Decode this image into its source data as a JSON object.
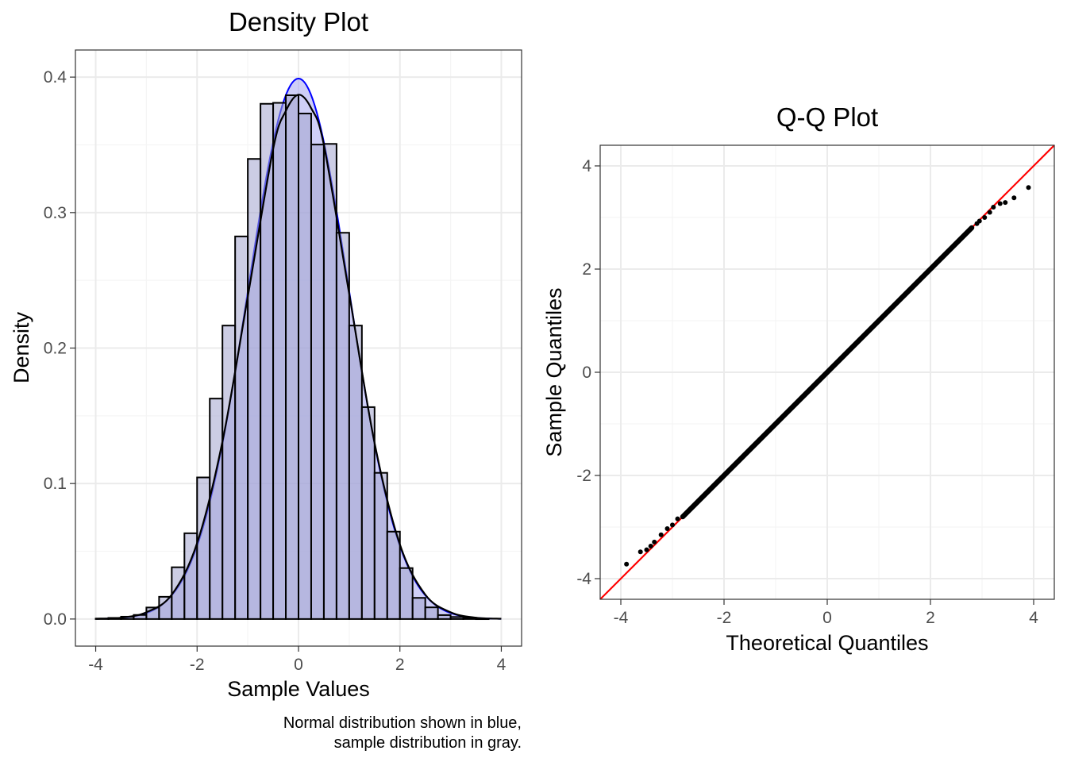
{
  "colors": {
    "panel_border": "#333333",
    "grid_major": "#ebebeb",
    "grid_minor": "#f5f5f5",
    "text": "#000000",
    "tick_text": "#4d4d4d",
    "hist_fill": "#a3a4cd",
    "hist_outline": "#000000",
    "normal_curve": "#0000ff",
    "normal_fill": "#a8a8f0",
    "sample_curve": "#000000",
    "qq_points": "#000000",
    "qq_line": "#ff0000"
  },
  "chart_data": [
    {
      "type": "bar",
      "title": "Density Plot",
      "xlabel": "Sample Values",
      "ylabel": "Density",
      "caption_lines": [
        "Normal distribution shown in blue,",
        "sample distribution in gray."
      ],
      "xlim": [
        -4.4,
        4.4
      ],
      "ylim": [
        -0.02,
        0.42
      ],
      "x_ticks": [
        -4,
        -2,
        0,
        2,
        4
      ],
      "x_tick_labels": [
        "-4",
        "-2",
        "0",
        "2",
        "4"
      ],
      "y_ticks": [
        0.0,
        0.1,
        0.2,
        0.3,
        0.4
      ],
      "y_tick_labels": [
        "0.0",
        "0.1",
        "0.2",
        "0.3",
        "0.4"
      ],
      "x_minor": [
        -3,
        -1,
        1,
        3
      ],
      "y_minor": [
        0.05,
        0.15,
        0.25,
        0.35
      ],
      "grid": true,
      "bins": [
        {
          "x0": -4.0,
          "x1": -3.75,
          "density": 0.0003
        },
        {
          "x0": -3.75,
          "x1": -3.5,
          "density": 0.0008
        },
        {
          "x0": -3.5,
          "x1": -3.25,
          "density": 0.0017
        },
        {
          "x0": -3.25,
          "x1": -3.0,
          "density": 0.003
        },
        {
          "x0": -3.0,
          "x1": -2.75,
          "density": 0.0085
        },
        {
          "x0": -2.75,
          "x1": -2.5,
          "density": 0.0164
        },
        {
          "x0": -2.5,
          "x1": -2.25,
          "density": 0.0382
        },
        {
          "x0": -2.25,
          "x1": -2.0,
          "density": 0.0633
        },
        {
          "x0": -2.0,
          "x1": -1.75,
          "density": 0.1045
        },
        {
          "x0": -1.75,
          "x1": -1.5,
          "density": 0.1627
        },
        {
          "x0": -1.5,
          "x1": -1.25,
          "density": 0.2166
        },
        {
          "x0": -1.25,
          "x1": -1.0,
          "density": 0.2824
        },
        {
          "x0": -1.0,
          "x1": -0.75,
          "density": 0.3396
        },
        {
          "x0": -0.75,
          "x1": -0.5,
          "density": 0.3803
        },
        {
          "x0": -0.5,
          "x1": -0.25,
          "density": 0.381
        },
        {
          "x0": -0.25,
          "x1": 0.0,
          "density": 0.3866
        },
        {
          "x0": 0.0,
          "x1": 0.25,
          "density": 0.3731
        },
        {
          "x0": 0.25,
          "x1": 0.5,
          "density": 0.3502
        },
        {
          "x0": 0.5,
          "x1": 0.75,
          "density": 0.3507
        },
        {
          "x0": 0.75,
          "x1": 1.0,
          "density": 0.2851
        },
        {
          "x0": 1.0,
          "x1": 1.25,
          "density": 0.2166
        },
        {
          "x0": 1.25,
          "x1": 1.5,
          "density": 0.1564
        },
        {
          "x0": 1.5,
          "x1": 1.75,
          "density": 0.1079
        },
        {
          "x0": 1.75,
          "x1": 2.0,
          "density": 0.0645
        },
        {
          "x0": 2.0,
          "x1": 2.25,
          "density": 0.0376
        },
        {
          "x0": 2.25,
          "x1": 2.5,
          "density": 0.0156
        },
        {
          "x0": 2.5,
          "x1": 2.75,
          "density": 0.0086
        },
        {
          "x0": 2.75,
          "x1": 3.0,
          "density": 0.0029
        },
        {
          "x0": 3.0,
          "x1": 3.25,
          "density": 0.0015
        },
        {
          "x0": 3.25,
          "x1": 3.5,
          "density": 0.0009
        },
        {
          "x0": 3.5,
          "x1": 3.75,
          "density": 0.0002
        }
      ],
      "series": [
        {
          "kind": "normal_density",
          "mean": 0,
          "sd": 1,
          "x_range": [
            -4,
            4
          ]
        },
        {
          "kind": "sample_density",
          "x": [
            -4,
            -3.5,
            -3,
            -2.5,
            -2,
            -1.5,
            -1,
            -0.5,
            -0.25,
            0,
            0.25,
            0.5,
            1,
            1.5,
            2,
            2.5,
            3,
            3.5,
            4
          ],
          "y": [
            0.0002,
            0.001,
            0.005,
            0.018,
            0.056,
            0.131,
            0.238,
            0.347,
            0.375,
            0.387,
            0.377,
            0.35,
            0.24,
            0.13,
            0.055,
            0.018,
            0.005,
            0.001,
            0.0002
          ]
        }
      ]
    },
    {
      "type": "scatter",
      "title": "Q-Q Plot",
      "xlabel": "Theoretical Quantiles",
      "ylabel": "Sample Quantiles",
      "xlim": [
        -4.4,
        4.4
      ],
      "ylim": [
        -4.4,
        4.4
      ],
      "x_ticks": [
        -4,
        -2,
        0,
        2,
        4
      ],
      "x_tick_labels": [
        "-4",
        "-2",
        "0",
        "2",
        "4"
      ],
      "y_ticks": [
        -4,
        -2,
        0,
        2,
        4
      ],
      "y_tick_labels": [
        "-4",
        "-2",
        "0",
        "2",
        "4"
      ],
      "x_minor": [
        -3,
        -1,
        1,
        3
      ],
      "y_minor": [
        -3,
        -1,
        1,
        3
      ],
      "grid": true,
      "reference_line": {
        "intercept": 0,
        "slope": 1
      },
      "quantile_range": [
        -2.8,
        2.8
      ],
      "points": [
        [
          -3.89,
          -3.72
        ],
        [
          -3.62,
          -3.48
        ],
        [
          -3.5,
          -3.44
        ],
        [
          -3.42,
          -3.37
        ],
        [
          -3.35,
          -3.29
        ],
        [
          -3.22,
          -3.15
        ],
        [
          -3.1,
          -3.03
        ],
        [
          -3.0,
          -2.96
        ],
        [
          -2.9,
          -2.84
        ],
        [
          2.9,
          2.88
        ],
        [
          2.95,
          2.93
        ],
        [
          3.05,
          3.0
        ],
        [
          3.15,
          3.1
        ],
        [
          3.22,
          3.2
        ],
        [
          3.35,
          3.27
        ],
        [
          3.45,
          3.29
        ],
        [
          3.62,
          3.38
        ],
        [
          3.9,
          3.58
        ]
      ]
    }
  ]
}
